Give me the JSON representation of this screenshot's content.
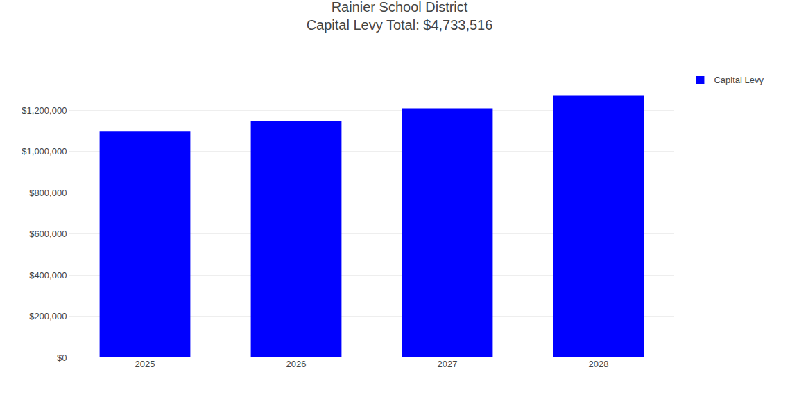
{
  "chart_data": {
    "type": "bar",
    "title": "Rainier School District",
    "subtitle": "Capital Levy Total: $4,733,516",
    "categories": [
      "2025",
      "2026",
      "2027",
      "2028"
    ],
    "series": [
      {
        "name": "Capital Levy",
        "color": "#0000FF",
        "values": [
          1100000,
          1150000,
          1210000,
          1273516
        ]
      }
    ],
    "ylim": [
      0,
      1400000
    ],
    "yticks": [
      {
        "value": 0,
        "label": "$0"
      },
      {
        "value": 200000,
        "label": "$200,000"
      },
      {
        "value": 400000,
        "label": "$400,000"
      },
      {
        "value": 600000,
        "label": "$600,000"
      },
      {
        "value": 800000,
        "label": "$800,000"
      },
      {
        "value": 1000000,
        "label": "$1,000,000"
      },
      {
        "value": 1200000,
        "label": "$1,200,000"
      }
    ],
    "grid": true,
    "legend": "upper right"
  }
}
